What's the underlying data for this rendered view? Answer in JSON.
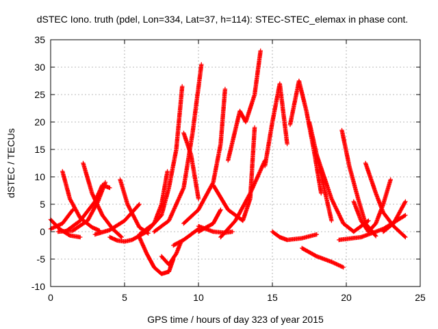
{
  "chart_data": {
    "type": "scatter",
    "title": "dSTEC Iono. truth (pdel, Lon=334, Lat=37, h=114): STEC-STEC_elemax in phase cont.",
    "xlabel": "GPS time / hours of day 323 of year 2015",
    "ylabel": "dSTEC  / TECUs",
    "xlim": [
      0,
      25
    ],
    "ylim": [
      -10,
      35
    ],
    "xticks": [
      0,
      5,
      10,
      15,
      20,
      25
    ],
    "yticks": [
      -10,
      -5,
      0,
      5,
      10,
      15,
      20,
      25,
      30,
      35
    ],
    "grid": true,
    "marker": "plus",
    "color": "#ff0000",
    "series": [
      {
        "x": [
          0.0,
          0.6,
          1.3,
          2.0
        ],
        "y": [
          2.2,
          0.5,
          -0.7,
          -1.0
        ]
      },
      {
        "x": [
          0.0,
          0.8,
          1.5
        ],
        "y": [
          0.5,
          1.5,
          4.0
        ]
      },
      {
        "x": [
          0.8,
          1.3,
          2.0,
          2.8,
          3.3
        ],
        "y": [
          11.0,
          6.0,
          2.5,
          0.8,
          0.2
        ]
      },
      {
        "x": [
          0.5,
          1.5,
          2.5,
          3.2,
          3.7
        ],
        "y": [
          0.0,
          0.2,
          2.0,
          5.5,
          9.0
        ]
      },
      {
        "x": [
          2.2,
          2.8,
          3.5,
          4.2,
          4.8
        ],
        "y": [
          12.5,
          7.0,
          3.0,
          0.5,
          -1.0
        ]
      },
      {
        "x": [
          1.0,
          2.0,
          3.0,
          3.5,
          4.0
        ],
        "y": [
          0.0,
          2.0,
          5.5,
          8.5,
          8.0
        ]
      },
      {
        "x": [
          4.0,
          4.5,
          5.0,
          5.5,
          6.5
        ],
        "y": [
          -1.0,
          -1.6,
          -1.8,
          -1.5,
          0.0
        ]
      },
      {
        "x": [
          4.7,
          5.2,
          6.0,
          6.6
        ],
        "y": [
          9.5,
          5.0,
          0.8,
          -0.3
        ]
      },
      {
        "x": [
          3.0,
          4.0,
          5.0,
          6.0
        ],
        "y": [
          -0.5,
          0.3,
          2.0,
          5.0
        ]
      },
      {
        "x": [
          6.0,
          6.5,
          7.0,
          7.5,
          8.0,
          8.3
        ],
        "y": [
          -1.0,
          -4.0,
          -6.5,
          -7.7,
          -7.3,
          -5.0
        ]
      },
      {
        "x": [
          7.5,
          8.0,
          8.5,
          8.8
        ],
        "y": [
          -4.5,
          -6.0,
          -4.0,
          -2.0
        ]
      },
      {
        "x": [
          6.0,
          7.0,
          7.5,
          7.9
        ],
        "y": [
          -0.5,
          1.5,
          5.0,
          11.0
        ]
      },
      {
        "x": [
          6.5,
          7.5,
          8.0,
          8.5,
          8.9
        ],
        "y": [
          0.0,
          3.0,
          8.0,
          15.0,
          26.5
        ]
      },
      {
        "x": [
          7.0,
          8.0,
          9.0,
          9.6,
          10.2
        ],
        "y": [
          0.0,
          2.0,
          8.0,
          18.0,
          30.5
        ]
      },
      {
        "x": [
          8.3,
          9.0,
          9.5,
          10.0
        ],
        "y": [
          -2.5,
          -1.5,
          -0.5,
          0.5
        ]
      },
      {
        "x": [
          9.0,
          9.5,
          10.0
        ],
        "y": [
          18.0,
          14.0,
          6.0
        ]
      },
      {
        "x": [
          10.0,
          11.0,
          11.5
        ],
        "y": [
          0.0,
          1.5,
          4.0
        ]
      },
      {
        "x": [
          9.0,
          10.0,
          11.0,
          11.5,
          11.8
        ],
        "y": [
          1.5,
          4.0,
          9.0,
          16.0,
          26.0
        ]
      },
      {
        "x": [
          10.0,
          11.0,
          11.8,
          12.3
        ],
        "y": [
          1.0,
          0.0,
          -0.2,
          0.0
        ]
      },
      {
        "x": [
          11.0,
          12.0,
          13.0,
          13.5,
          13.8
        ],
        "y": [
          8.5,
          4.0,
          2.0,
          6.0,
          19.0
        ]
      },
      {
        "x": [
          12.0,
          12.8,
          13.2,
          13.8,
          14.2
        ],
        "y": [
          13.0,
          22.0,
          20.0,
          25.0,
          33.0
        ]
      },
      {
        "x": [
          11.5,
          12.5,
          13.5,
          14.5
        ],
        "y": [
          -1.0,
          2.0,
          7.0,
          13.0
        ]
      },
      {
        "x": [
          14.5,
          15.0,
          15.5,
          16.0
        ],
        "y": [
          12.0,
          20.0,
          27.0,
          16.0
        ]
      },
      {
        "x": [
          15.0,
          15.5,
          16.0,
          17.0,
          18.0
        ],
        "y": [
          0.0,
          -1.0,
          -1.5,
          -1.2,
          -0.5
        ]
      },
      {
        "x": [
          16.2,
          16.8,
          17.3,
          17.8,
          18.3
        ],
        "y": [
          19.5,
          27.5,
          22.0,
          15.0,
          7.0
        ]
      },
      {
        "x": [
          17.5,
          18.0,
          18.5,
          19.0
        ],
        "y": [
          20.0,
          14.0,
          8.0,
          2.0
        ]
      },
      {
        "x": [
          17.0,
          18.0,
          19.0,
          19.8
        ],
        "y": [
          -3.0,
          -4.5,
          -5.5,
          -6.5
        ]
      },
      {
        "x": [
          18.0,
          19.0,
          19.8,
          20.5,
          21.5
        ],
        "y": [
          14.0,
          6.0,
          1.5,
          0.0,
          2.0
        ]
      },
      {
        "x": [
          19.7,
          20.2,
          20.8,
          21.3,
          22.0
        ],
        "y": [
          18.5,
          12.0,
          6.0,
          1.5,
          -0.8
        ]
      },
      {
        "x": [
          20.5,
          21.0,
          21.5,
          22.0,
          22.5,
          23.0
        ],
        "y": [
          5.5,
          2.0,
          0.0,
          1.5,
          5.0,
          9.5
        ]
      },
      {
        "x": [
          21.3,
          22.0,
          22.5,
          23.2,
          24.0
        ],
        "y": [
          12.5,
          7.0,
          3.5,
          1.0,
          -1.0
        ]
      },
      {
        "x": [
          22.5,
          23.2,
          24.0
        ],
        "y": [
          0.0,
          1.5,
          5.5
        ]
      },
      {
        "x": [
          19.5,
          21.0,
          22.5,
          24.0
        ],
        "y": [
          -1.5,
          -1.0,
          0.5,
          3.0
        ]
      }
    ]
  }
}
